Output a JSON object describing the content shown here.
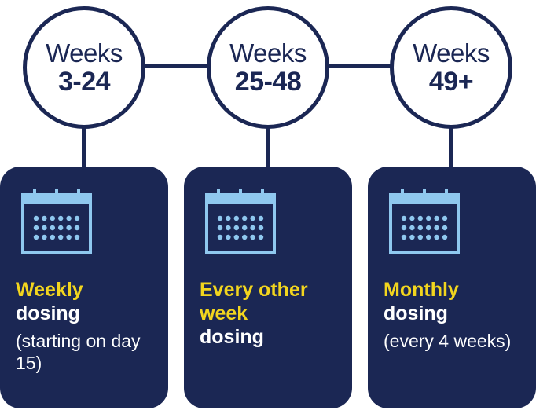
{
  "phases": [
    {
      "weeks_label": "Weeks",
      "weeks_range": "3-24",
      "highlight": "Weekly",
      "dosing": "dosing",
      "note": "(starting on day 15)"
    },
    {
      "weeks_label": "Weeks",
      "weeks_range": "25-48",
      "highlight": "Every other week",
      "dosing": "dosing",
      "note": ""
    },
    {
      "weeks_label": "Weeks",
      "weeks_range": "49+",
      "highlight": "Monthly",
      "dosing": "dosing",
      "note": "(every 4 weeks)"
    }
  ],
  "icons": {
    "calendar": "calendar-icon"
  },
  "colors": {
    "navy": "#1b2754",
    "highlight_yellow": "#f2d51e",
    "icon_blue": "#8fc8ef",
    "white": "#ffffff"
  }
}
